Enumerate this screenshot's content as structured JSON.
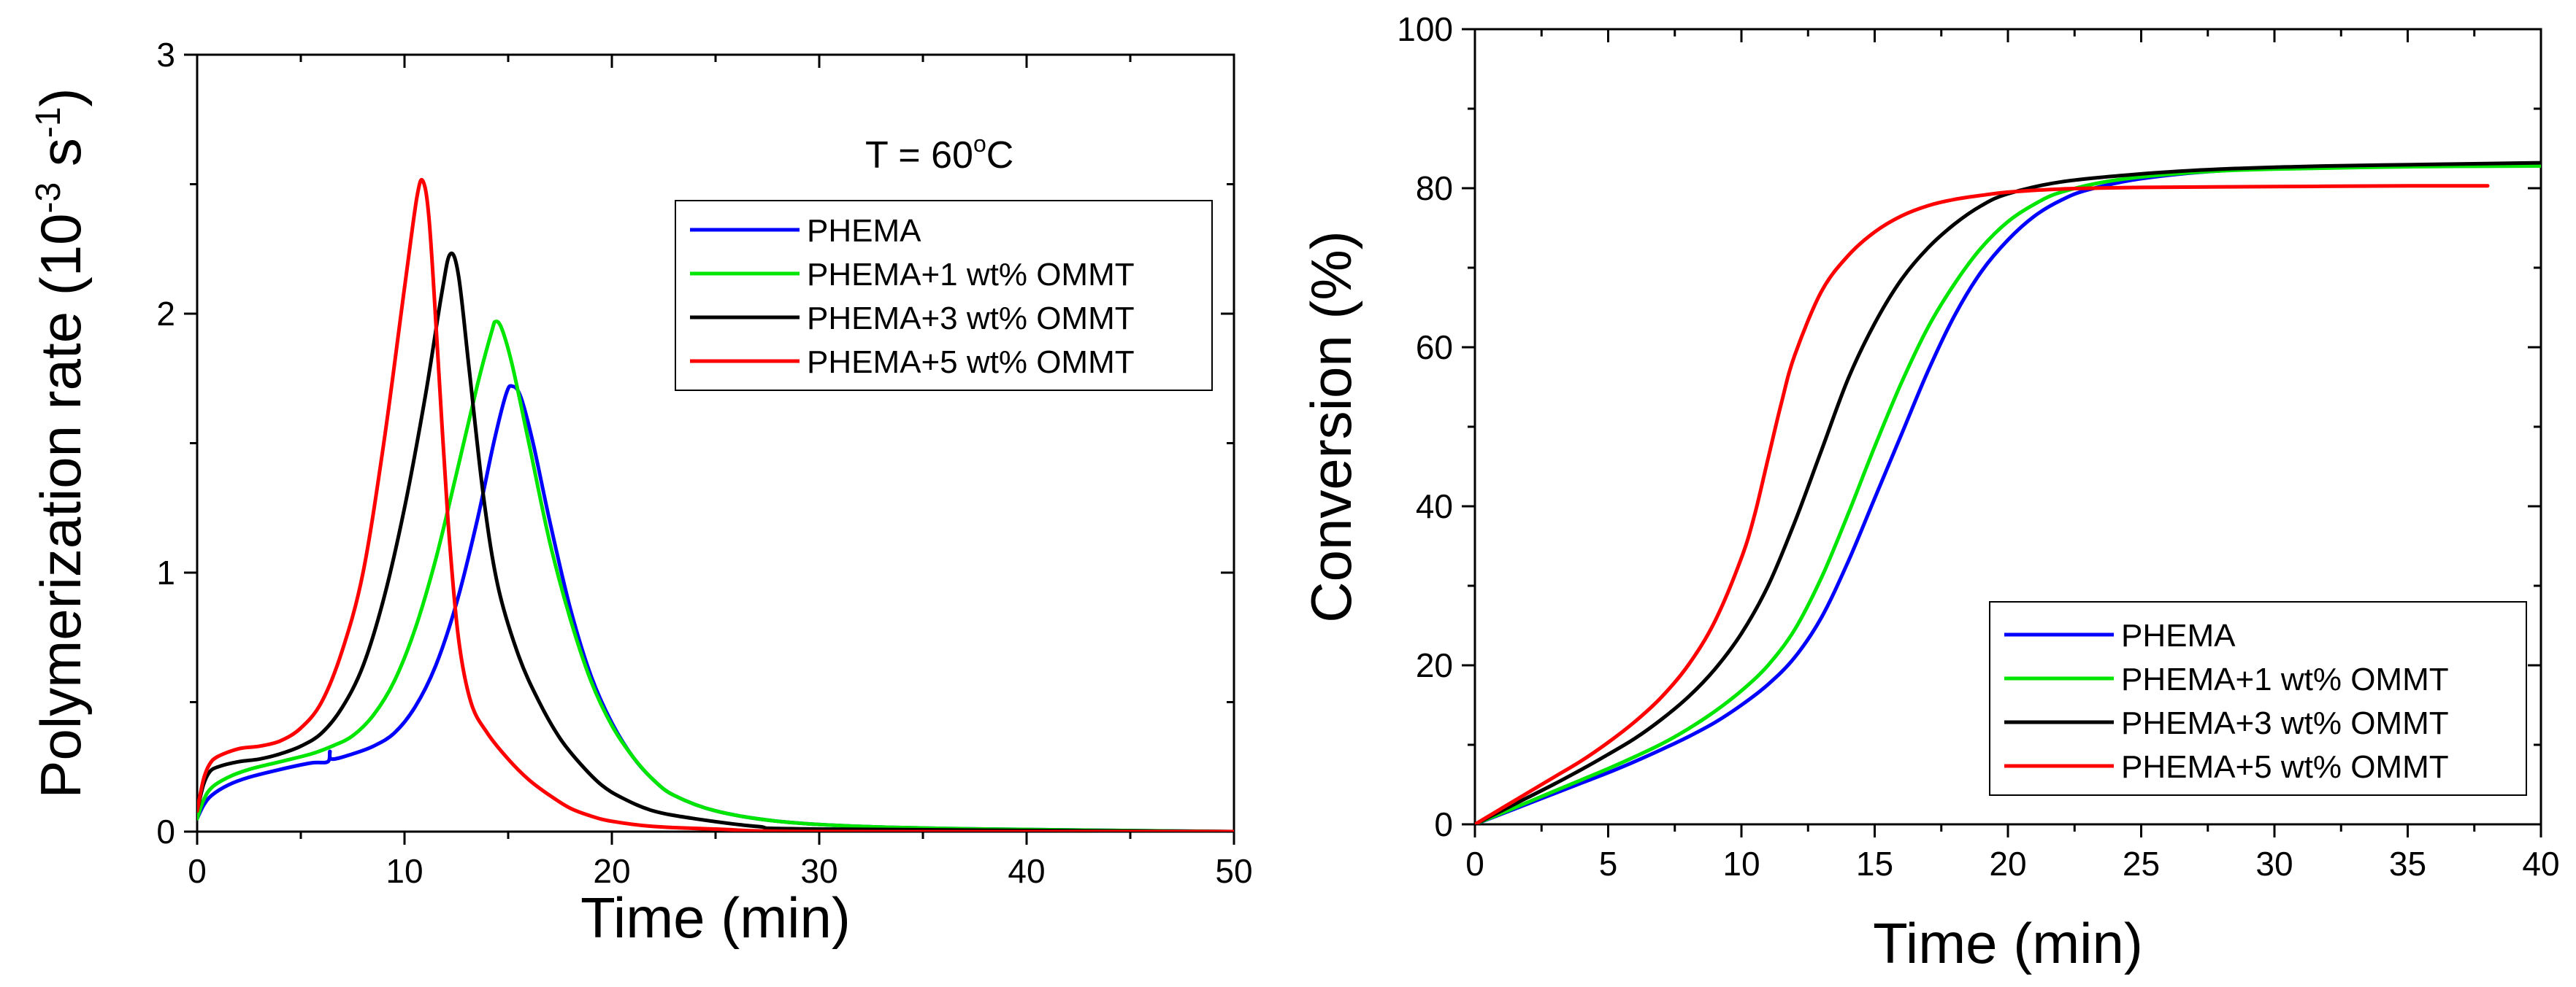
{
  "chart_data": [
    {
      "type": "line",
      "title": "",
      "xlabel": "Time (min)",
      "ylabel": "Polymerization rate (10",
      "ylabel_sup1": "-3",
      "ylabel_mid": " s",
      "ylabel_sup2": "-1",
      "ylabel_end": ")",
      "xlim": [
        0,
        50
      ],
      "ylim": [
        0,
        3
      ],
      "xticks": [
        0,
        10,
        20,
        30,
        40,
        50
      ],
      "yticks": [
        0,
        1,
        2,
        3
      ],
      "xtick_labels": [
        "0",
        "10",
        "20",
        "30",
        "40",
        "50"
      ],
      "ytick_labels": [
        "0",
        "1",
        "2",
        "3"
      ],
      "legend_position": "top-right",
      "annotation": {
        "text": "T = 60",
        "sup": "o",
        "tail": "C"
      },
      "series": [
        {
          "name": "PHEMA",
          "color": "#0000ff",
          "points": [
            [
              0,
              0.05
            ],
            [
              0.3,
              0.1
            ],
            [
              0.7,
              0.14
            ],
            [
              1.5,
              0.18
            ],
            [
              2.5,
              0.21
            ],
            [
              4,
              0.24
            ],
            [
              5.5,
              0.265
            ],
            [
              6.3,
              0.27
            ],
            [
              6.4,
              0.31
            ],
            [
              6.5,
              0.28
            ],
            [
              7.5,
              0.3
            ],
            [
              8.5,
              0.33
            ],
            [
              9.5,
              0.38
            ],
            [
              10.5,
              0.48
            ],
            [
              11.5,
              0.64
            ],
            [
              12.5,
              0.88
            ],
            [
              13.5,
              1.2
            ],
            [
              14.3,
              1.5
            ],
            [
              14.9,
              1.69
            ],
            [
              15.2,
              1.72
            ],
            [
              15.6,
              1.68
            ],
            [
              16.2,
              1.5
            ],
            [
              17,
              1.2
            ],
            [
              18,
              0.86
            ],
            [
              19,
              0.6
            ],
            [
              20,
              0.42
            ],
            [
              21,
              0.29
            ],
            [
              22,
              0.2
            ],
            [
              23,
              0.14
            ],
            [
              25,
              0.08
            ],
            [
              28,
              0.04
            ],
            [
              32,
              0.02
            ],
            [
              38,
              0.01
            ],
            [
              50,
              0.0
            ]
          ]
        },
        {
          "name": "PHEMA+1 wt% OMMT",
          "color": "#00e600",
          "points": [
            [
              0,
              0.05
            ],
            [
              0.3,
              0.12
            ],
            [
              0.7,
              0.17
            ],
            [
              1.5,
              0.21
            ],
            [
              2.5,
              0.24
            ],
            [
              4,
              0.27
            ],
            [
              5.5,
              0.3
            ],
            [
              6.5,
              0.33
            ],
            [
              7.5,
              0.37
            ],
            [
              8.5,
              0.45
            ],
            [
              9.5,
              0.58
            ],
            [
              10.5,
              0.78
            ],
            [
              11.5,
              1.05
            ],
            [
              12.5,
              1.38
            ],
            [
              13.5,
              1.72
            ],
            [
              14.2,
              1.93
            ],
            [
              14.4,
              1.97
            ],
            [
              14.7,
              1.94
            ],
            [
              15.2,
              1.8
            ],
            [
              16,
              1.5
            ],
            [
              17,
              1.12
            ],
            [
              18,
              0.82
            ],
            [
              19,
              0.58
            ],
            [
              20,
              0.41
            ],
            [
              21,
              0.29
            ],
            [
              22,
              0.2
            ],
            [
              23,
              0.14
            ],
            [
              25,
              0.08
            ],
            [
              28,
              0.04
            ],
            [
              32,
              0.02
            ],
            [
              38,
              0.01
            ],
            [
              50,
              0.0
            ]
          ]
        },
        {
          "name": "PHEMA+3 wt% OMMT",
          "color": "#000000",
          "points": [
            [
              0,
              0.08
            ],
            [
              0.3,
              0.18
            ],
            [
              0.6,
              0.23
            ],
            [
              1,
              0.25
            ],
            [
              2,
              0.27
            ],
            [
              3,
              0.28
            ],
            [
              4,
              0.3
            ],
            [
              5,
              0.33
            ],
            [
              6,
              0.38
            ],
            [
              7,
              0.48
            ],
            [
              8,
              0.64
            ],
            [
              9,
              0.9
            ],
            [
              10,
              1.25
            ],
            [
              11,
              1.68
            ],
            [
              11.8,
              2.08
            ],
            [
              12.2,
              2.23
            ],
            [
              12.6,
              2.15
            ],
            [
              13.1,
              1.8
            ],
            [
              13.8,
              1.3
            ],
            [
              14.5,
              0.95
            ],
            [
              15.5,
              0.68
            ],
            [
              16.5,
              0.5
            ],
            [
              17.5,
              0.36
            ],
            [
              18.5,
              0.26
            ],
            [
              19.5,
              0.18
            ],
            [
              20.5,
              0.13
            ],
            [
              22,
              0.08
            ],
            [
              24,
              0.05
            ],
            [
              27,
              0.02
            ],
            [
              30,
              0.01
            ],
            [
              50,
              0.0
            ]
          ]
        },
        {
          "name": "PHEMA+5 wt% OMMT",
          "color": "#ff0000",
          "points": [
            [
              0,
              0.08
            ],
            [
              0.3,
              0.2
            ],
            [
              0.6,
              0.26
            ],
            [
              1,
              0.29
            ],
            [
              2,
              0.32
            ],
            [
              3,
              0.33
            ],
            [
              4,
              0.35
            ],
            [
              5,
              0.4
            ],
            [
              6,
              0.5
            ],
            [
              7,
              0.7
            ],
            [
              8,
              1.0
            ],
            [
              9,
              1.5
            ],
            [
              10,
              2.1
            ],
            [
              10.6,
              2.45
            ],
            [
              10.9,
              2.51
            ],
            [
              11.2,
              2.35
            ],
            [
              11.6,
              1.85
            ],
            [
              12.1,
              1.2
            ],
            [
              12.6,
              0.75
            ],
            [
              13.2,
              0.5
            ],
            [
              14,
              0.38
            ],
            [
              15,
              0.28
            ],
            [
              16,
              0.2
            ],
            [
              17,
              0.14
            ],
            [
              18,
              0.09
            ],
            [
              19,
              0.06
            ],
            [
              20,
              0.04
            ],
            [
              22,
              0.02
            ],
            [
              25,
              0.01
            ],
            [
              30,
              0.0
            ],
            [
              50,
              0.0
            ]
          ]
        }
      ]
    },
    {
      "type": "line",
      "title": "",
      "xlabel": "Time (min)",
      "ylabel": "Conversion (%)",
      "xlim": [
        0,
        40
      ],
      "ylim": [
        0,
        100
      ],
      "xticks": [
        0,
        5,
        10,
        15,
        20,
        25,
        30,
        35,
        40
      ],
      "yticks": [
        0,
        20,
        40,
        60,
        80,
        100
      ],
      "xtick_labels": [
        "0",
        "5",
        "10",
        "15",
        "20",
        "25",
        "30",
        "35",
        "40"
      ],
      "ytick_labels": [
        "0",
        "20",
        "40",
        "60",
        "80",
        "100"
      ],
      "legend_position": "bottom-right",
      "series": [
        {
          "name": "PHEMA",
          "color": "#0000ff",
          "points": [
            [
              0,
              0
            ],
            [
              1,
              1.3
            ],
            [
              2,
              2.6
            ],
            [
              3,
              3.9
            ],
            [
              4,
              5.2
            ],
            [
              5,
              6.5
            ],
            [
              6,
              7.9
            ],
            [
              7,
              9.4
            ],
            [
              8,
              11
            ],
            [
              9,
              12.8
            ],
            [
              10,
              15
            ],
            [
              11,
              17.6
            ],
            [
              12,
              21
            ],
            [
              13,
              26
            ],
            [
              14,
              33
            ],
            [
              15,
              41
            ],
            [
              16,
              49
            ],
            [
              17,
              57
            ],
            [
              18,
              64
            ],
            [
              19,
              69.5
            ],
            [
              20,
              73.5
            ],
            [
              21,
              76.5
            ],
            [
              22,
              78.5
            ],
            [
              23,
              79.8
            ],
            [
              25,
              81.2
            ],
            [
              28,
              82.2
            ],
            [
              32,
              82.7
            ],
            [
              36,
              82.9
            ],
            [
              40,
              83
            ]
          ]
        },
        {
          "name": "PHEMA+1 wt% OMMT",
          "color": "#00e600",
          "points": [
            [
              0,
              0
            ],
            [
              1,
              1.4
            ],
            [
              2,
              2.8
            ],
            [
              3,
              4.2
            ],
            [
              4,
              5.6
            ],
            [
              5,
              7
            ],
            [
              6,
              8.5
            ],
            [
              7,
              10.1
            ],
            [
              8,
              12
            ],
            [
              9,
              14.2
            ],
            [
              10,
              16.8
            ],
            [
              11,
              20
            ],
            [
              12,
              24.5
            ],
            [
              13,
              31
            ],
            [
              14,
              39
            ],
            [
              15,
              47.5
            ],
            [
              16,
              55.5
            ],
            [
              17,
              62.5
            ],
            [
              18,
              68
            ],
            [
              19,
              72.5
            ],
            [
              20,
              75.8
            ],
            [
              21,
              78
            ],
            [
              22,
              79.5
            ],
            [
              24,
              81
            ],
            [
              27,
              82
            ],
            [
              30,
              82.4
            ],
            [
              35,
              82.7
            ],
            [
              40,
              82.8
            ]
          ]
        },
        {
          "name": "PHEMA+3 wt% OMMT",
          "color": "#000000",
          "points": [
            [
              0,
              0
            ],
            [
              1,
              1.7
            ],
            [
              2,
              3.4
            ],
            [
              3,
              5.1
            ],
            [
              4,
              6.9
            ],
            [
              5,
              8.8
            ],
            [
              6,
              10.8
            ],
            [
              7,
              13.2
            ],
            [
              8,
              16
            ],
            [
              9,
              19.5
            ],
            [
              10,
              24
            ],
            [
              11,
              30
            ],
            [
              12,
              38
            ],
            [
              13,
              47
            ],
            [
              14,
              56
            ],
            [
              15,
              63
            ],
            [
              16,
              68.5
            ],
            [
              17,
              72.5
            ],
            [
              18,
              75.5
            ],
            [
              19,
              77.8
            ],
            [
              20,
              79.3
            ],
            [
              22,
              80.8
            ],
            [
              25,
              81.8
            ],
            [
              28,
              82.4
            ],
            [
              32,
              82.8
            ],
            [
              36,
              83
            ],
            [
              40,
              83.2
            ]
          ]
        },
        {
          "name": "PHEMA+5 wt% OMMT",
          "color": "#ff0000",
          "points": [
            [
              0,
              0
            ],
            [
              1,
              2
            ],
            [
              2,
              4
            ],
            [
              3,
              6
            ],
            [
              4,
              8
            ],
            [
              5,
              10.3
            ],
            [
              6,
              12.9
            ],
            [
              7,
              16
            ],
            [
              8,
              20
            ],
            [
              9,
              25.5
            ],
            [
              10,
              33.5
            ],
            [
              10.5,
              39
            ],
            [
              11,
              46
            ],
            [
              11.5,
              53
            ],
            [
              12,
              59
            ],
            [
              13,
              67
            ],
            [
              14,
              71.5
            ],
            [
              15,
              74.5
            ],
            [
              16,
              76.5
            ],
            [
              17,
              77.8
            ],
            [
              18,
              78.6
            ],
            [
              19,
              79.1
            ],
            [
              20,
              79.5
            ],
            [
              22,
              79.9
            ],
            [
              25,
              80.1
            ],
            [
              30,
              80.2
            ],
            [
              35,
              80.3
            ],
            [
              38,
              80.3
            ]
          ]
        }
      ]
    }
  ]
}
